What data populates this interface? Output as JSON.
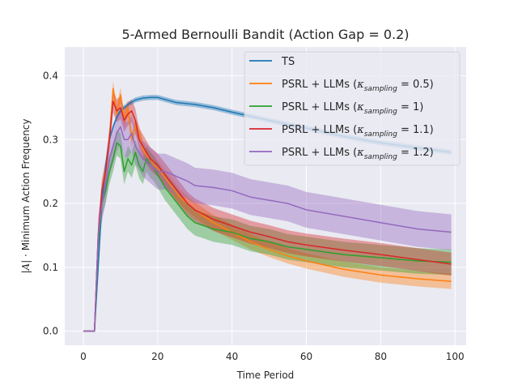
{
  "chart_data": {
    "type": "line",
    "title": "5-Armed Bernoulli Bandit (Action Gap = 0.2)",
    "xlabel": "Time Period",
    "ylabel_prefix": "|",
    "ylabel_symbol": "A",
    "ylabel_suffix": "| · Minimum Action Frequency",
    "xlim": [
      -5,
      103
    ],
    "ylim": [
      -0.022,
      0.445
    ],
    "xticks": [
      0,
      20,
      40,
      60,
      80,
      100
    ],
    "yticks": [
      0.0,
      0.1,
      0.2,
      0.3,
      0.4
    ],
    "ytick_labels": [
      "0.0",
      "0.1",
      "0.2",
      "0.3",
      "0.4"
    ],
    "grid": true,
    "background": "#eaeaf2",
    "legend_position": "top-right",
    "series": [
      {
        "name": "TS",
        "legend_plain": "TS",
        "kappa": null,
        "color": "#1f77b4",
        "x": [
          0,
          1,
          2,
          3,
          4,
          5,
          6,
          7,
          8,
          9,
          10,
          12,
          14,
          16,
          18,
          20,
          25,
          30,
          35,
          40,
          50,
          60,
          70,
          80,
          90,
          99
        ],
        "y": [
          0,
          0,
          0,
          0,
          0.1,
          0.2,
          0.26,
          0.3,
          0.32,
          0.335,
          0.345,
          0.355,
          0.362,
          0.365,
          0.366,
          0.366,
          0.358,
          0.355,
          0.35,
          0.343,
          0.33,
          0.318,
          0.305,
          0.295,
          0.287,
          0.28
        ],
        "band": 0.004
      },
      {
        "name": "PSRL + LLMs (κ_sampling = 0.5)",
        "legend_plain": "PSRL + LLMs (",
        "kappa": "0.5",
        "color": "#ff7f0e",
        "x": [
          0,
          1,
          2,
          3,
          4,
          5,
          6,
          7,
          8,
          9,
          10,
          11,
          12,
          13,
          14,
          15,
          16,
          17,
          18,
          19,
          20,
          22,
          24,
          26,
          28,
          30,
          35,
          40,
          45,
          50,
          55,
          60,
          70,
          80,
          90,
          99
        ],
        "y": [
          0,
          0,
          0,
          0,
          0.15,
          0.22,
          0.25,
          0.3,
          0.38,
          0.34,
          0.37,
          0.33,
          0.35,
          0.3,
          0.32,
          0.31,
          0.285,
          0.275,
          0.27,
          0.26,
          0.255,
          0.24,
          0.225,
          0.21,
          0.2,
          0.19,
          0.17,
          0.155,
          0.14,
          0.128,
          0.118,
          0.11,
          0.097,
          0.088,
          0.082,
          0.078
        ],
        "band": 0.012
      },
      {
        "name": "PSRL + LLMs (κ_sampling = 1)",
        "legend_plain": "PSRL + LLMs (",
        "kappa": "1",
        "color": "#2ca02c",
        "x": [
          0,
          1,
          2,
          3,
          4,
          5,
          6,
          7,
          8,
          9,
          10,
          11,
          12,
          13,
          14,
          15,
          16,
          17,
          18,
          19,
          20,
          22,
          24,
          26,
          28,
          30,
          35,
          40,
          45,
          50,
          55,
          60,
          70,
          80,
          90,
          99
        ],
        "y": [
          0,
          0,
          0,
          0,
          0.14,
          0.2,
          0.22,
          0.25,
          0.27,
          0.295,
          0.29,
          0.25,
          0.27,
          0.26,
          0.28,
          0.26,
          0.25,
          0.27,
          0.26,
          0.255,
          0.245,
          0.225,
          0.21,
          0.195,
          0.18,
          0.17,
          0.16,
          0.155,
          0.145,
          0.14,
          0.132,
          0.128,
          0.12,
          0.115,
          0.11,
          0.108
        ],
        "band": 0.02
      },
      {
        "name": "PSRL + LLMs (κ_sampling = 1.1)",
        "legend_plain": "PSRL + LLMs (",
        "kappa": "1.1",
        "color": "#d62728",
        "x": [
          0,
          1,
          2,
          3,
          4,
          5,
          6,
          7,
          8,
          9,
          10,
          11,
          12,
          13,
          14,
          15,
          16,
          17,
          18,
          19,
          20,
          22,
          24,
          26,
          28,
          30,
          35,
          40,
          45,
          50,
          55,
          60,
          70,
          80,
          90,
          99
        ],
        "y": [
          0,
          0,
          0,
          0,
          0.15,
          0.22,
          0.25,
          0.3,
          0.36,
          0.345,
          0.35,
          0.33,
          0.34,
          0.345,
          0.33,
          0.3,
          0.29,
          0.28,
          0.27,
          0.265,
          0.26,
          0.245,
          0.23,
          0.215,
          0.2,
          0.19,
          0.175,
          0.165,
          0.155,
          0.148,
          0.14,
          0.135,
          0.127,
          0.12,
          0.112,
          0.105
        ],
        "band": 0.018
      },
      {
        "name": "PSRL + LLMs (κ_sampling = 1.2)",
        "legend_plain": "PSRL + LLMs (",
        "kappa": "1.2",
        "color": "#9467bd",
        "x": [
          0,
          1,
          2,
          3,
          4,
          5,
          6,
          7,
          8,
          9,
          10,
          11,
          12,
          13,
          14,
          15,
          16,
          17,
          18,
          19,
          20,
          22,
          24,
          26,
          28,
          30,
          35,
          40,
          45,
          50,
          55,
          60,
          70,
          80,
          90,
          99
        ],
        "y": [
          0,
          0,
          0,
          0,
          0.15,
          0.2,
          0.23,
          0.27,
          0.29,
          0.31,
          0.32,
          0.3,
          0.3,
          0.31,
          0.29,
          0.28,
          0.27,
          0.265,
          0.26,
          0.255,
          0.25,
          0.25,
          0.245,
          0.24,
          0.235,
          0.228,
          0.225,
          0.22,
          0.21,
          0.205,
          0.2,
          0.19,
          0.18,
          0.17,
          0.16,
          0.155
        ],
        "band": 0.028
      }
    ]
  }
}
